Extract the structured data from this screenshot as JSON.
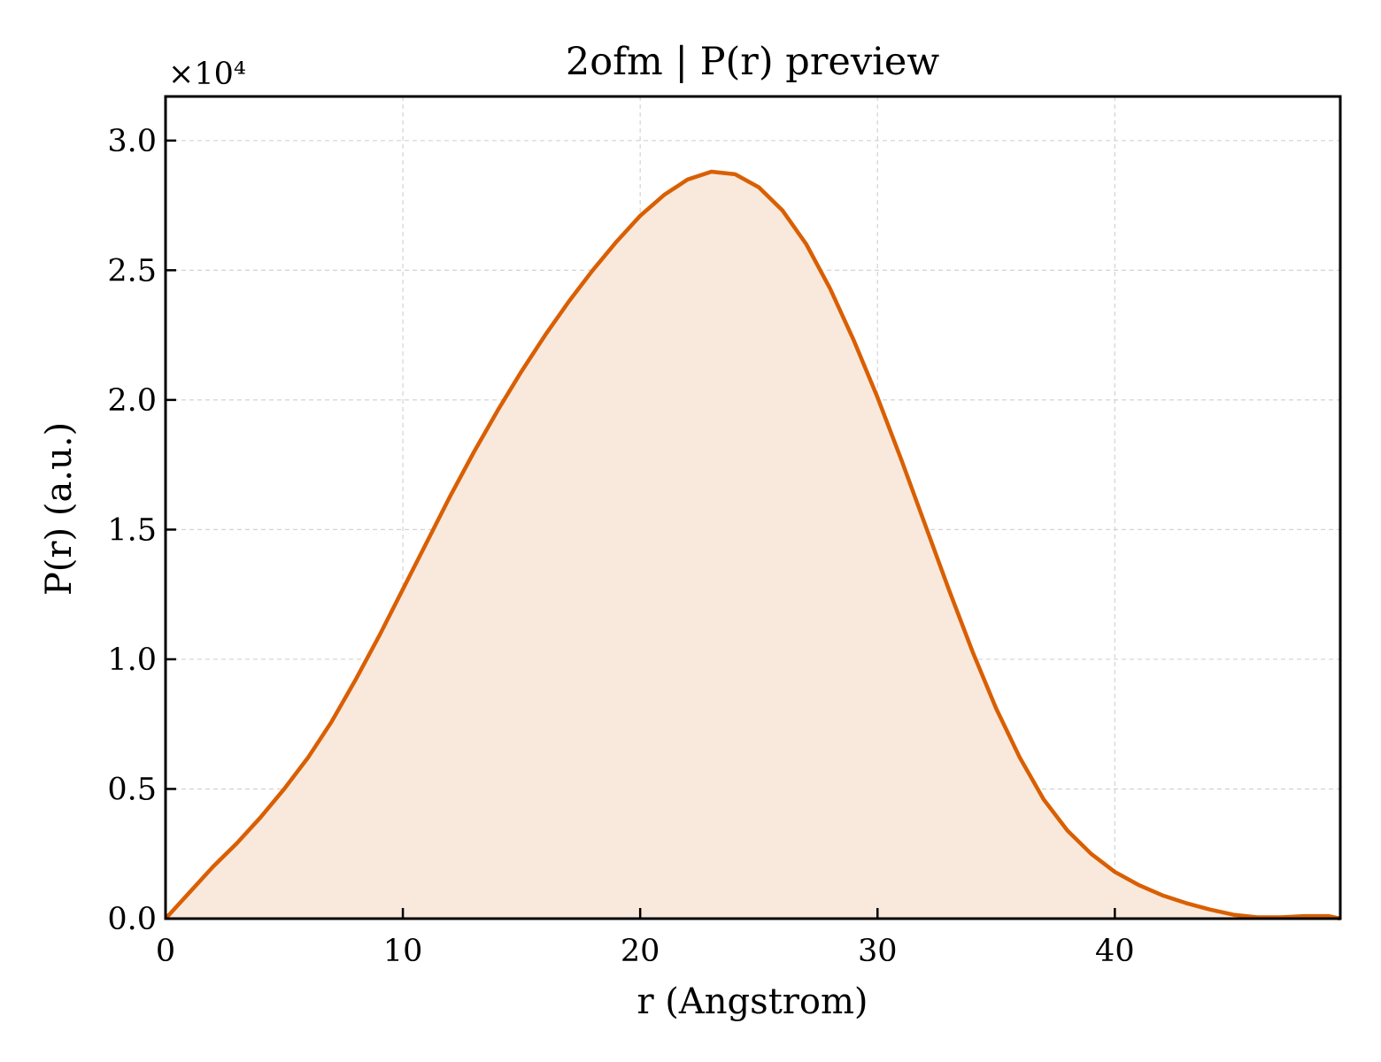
{
  "chart_data": {
    "type": "area",
    "title": "2ofm | P(r) preview",
    "xlabel": "r (Angstrom)",
    "ylabel": "P(r) (a.u.)",
    "y_offset_label": "×10⁴",
    "xlim": [
      0,
      49.5
    ],
    "ylim": [
      0,
      3.17
    ],
    "y_scale_note": "values in units of 10^4",
    "grid": true,
    "x_ticks": [
      {
        "value": 0,
        "label": "0"
      },
      {
        "value": 10,
        "label": "10"
      },
      {
        "value": 20,
        "label": "20"
      },
      {
        "value": 30,
        "label": "30"
      },
      {
        "value": 40,
        "label": "40"
      }
    ],
    "y_ticks": [
      {
        "value": 0.0,
        "label": "0.0"
      },
      {
        "value": 0.5,
        "label": "0.5"
      },
      {
        "value": 1.0,
        "label": "1.0"
      },
      {
        "value": 1.5,
        "label": "1.5"
      },
      {
        "value": 2.0,
        "label": "2.0"
      },
      {
        "value": 2.5,
        "label": "2.5"
      },
      {
        "value": 3.0,
        "label": "3.0"
      }
    ],
    "colors": {
      "line": "#d95f02",
      "fill": "#f9e9dd",
      "grid": "#d3d3d3"
    },
    "series": [
      {
        "x": [
          0,
          1,
          2,
          3,
          4,
          5,
          6,
          7,
          8,
          9,
          10,
          11,
          12,
          13,
          14,
          15,
          16,
          17,
          18,
          19,
          20,
          21,
          22,
          23,
          24,
          25,
          26,
          27,
          28,
          29,
          30,
          31,
          32,
          33,
          34,
          35,
          36,
          37,
          38,
          39,
          40,
          41,
          42,
          43,
          44,
          45,
          46,
          47,
          48,
          49,
          49.5
        ],
        "y": [
          0.0,
          0.1,
          0.2,
          0.29,
          0.39,
          0.5,
          0.62,
          0.76,
          0.92,
          1.09,
          1.27,
          1.45,
          1.63,
          1.8,
          1.96,
          2.11,
          2.25,
          2.38,
          2.5,
          2.61,
          2.71,
          2.79,
          2.85,
          2.88,
          2.87,
          2.82,
          2.73,
          2.6,
          2.43,
          2.23,
          2.01,
          1.77,
          1.52,
          1.27,
          1.03,
          0.81,
          0.62,
          0.46,
          0.34,
          0.25,
          0.18,
          0.13,
          0.09,
          0.06,
          0.035,
          0.015,
          0.005,
          0.005,
          0.01,
          0.01,
          0.0
        ]
      }
    ]
  }
}
